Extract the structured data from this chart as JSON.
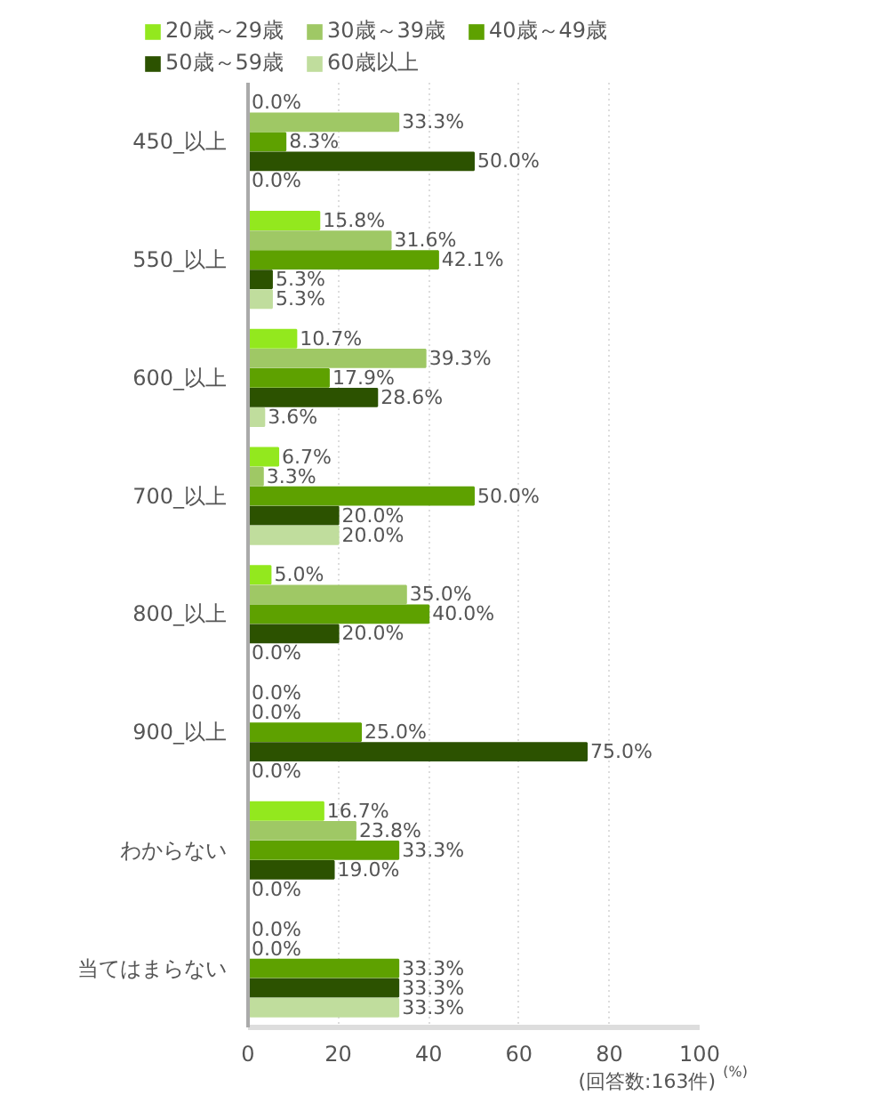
{
  "chart_data": {
    "type": "bar",
    "orientation": "horizontal",
    "categories": [
      "450_以上",
      "550_以上",
      "600_以上",
      "700_以上",
      "800_以上",
      "900_以上",
      "わからない",
      "当てはまらない"
    ],
    "series": [
      {
        "name": "20歳～29歳",
        "color": "#93e81e",
        "values": [
          0.0,
          15.8,
          10.7,
          6.7,
          5.0,
          0.0,
          16.7,
          0.0
        ],
        "value_labels": [
          "0.0%",
          "15.8%",
          "10.7%",
          "6.7%",
          "5.0%",
          "0.0%",
          "16.7%",
          "0.0%"
        ]
      },
      {
        "name": "30歳～39歳",
        "color": "#9fc865",
        "values": [
          33.3,
          31.6,
          39.3,
          3.3,
          35.0,
          0.0,
          23.8,
          0.0
        ],
        "value_labels": [
          "33.3%",
          "31.6%",
          "39.3%",
          "3.3%",
          "35.0%",
          "0.0%",
          "23.8%",
          "0.0%"
        ]
      },
      {
        "name": "40歳～49歳",
        "color": "#5ea100",
        "values": [
          8.3,
          42.1,
          17.9,
          50.0,
          40.0,
          25.0,
          33.3,
          33.3
        ],
        "value_labels": [
          "8.3%",
          "42.1%",
          "17.9%",
          "50.0%",
          "40.0%",
          "25.0%",
          "33.3%",
          "33.3%"
        ]
      },
      {
        "name": "50歳～59歳",
        "color": "#2c5200",
        "values": [
          50.0,
          5.3,
          28.6,
          20.0,
          20.0,
          75.0,
          19.0,
          33.3
        ],
        "value_labels": [
          "50.0%",
          "5.3%",
          "28.6%",
          "20.0%",
          "20.0%",
          "75.0%",
          "19.0%",
          "33.3%"
        ]
      },
      {
        "name": "60歳以上",
        "color": "#c0dd9d",
        "values": [
          0.0,
          5.3,
          3.6,
          20.0,
          0.0,
          0.0,
          0.0,
          33.3
        ],
        "value_labels": [
          "0.0%",
          "5.3%",
          "3.6%",
          "20.0%",
          "0.0%",
          "0.0%",
          "0.0%",
          "33.3%"
        ]
      }
    ],
    "xlim": [
      0,
      100
    ],
    "xticks": [
      0,
      20,
      40,
      60,
      80,
      100
    ],
    "xlabel": "(%)",
    "annotations": [
      "(回答数:163件)"
    ],
    "grid": "x",
    "legend": "top"
  }
}
